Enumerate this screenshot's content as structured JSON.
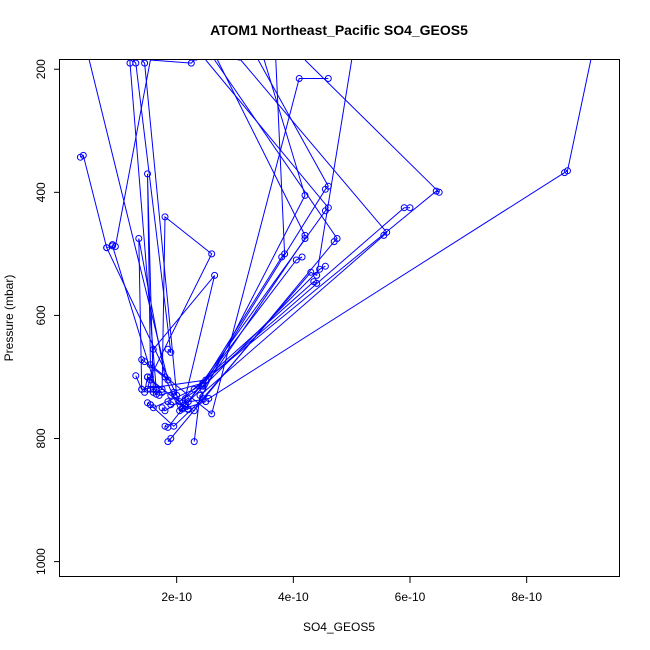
{
  "chart_data": {
    "type": "line",
    "title": "ATOM1 Northeast_Pacific SO4_GEOS5",
    "xlabel": "SO4_GEOS5",
    "ylabel": "Pressure (mbar)",
    "xlim": [
      0,
      9.6e-10
    ],
    "ylim": [
      1025,
      185
    ],
    "y_reversed": true,
    "grid": false,
    "line_color": "#0000ff",
    "marker": "open-circle",
    "x_ticks": [
      {
        "value": 2e-10,
        "label": "2e-10"
      },
      {
        "value": 4e-10,
        "label": "4e-10"
      },
      {
        "value": 6e-10,
        "label": "6e-10"
      },
      {
        "value": 8e-10,
        "label": "8e-10"
      }
    ],
    "y_ticks": [
      {
        "value": 200,
        "label": "200"
      },
      {
        "value": 400,
        "label": "400"
      },
      {
        "value": 600,
        "label": "600"
      },
      {
        "value": 800,
        "label": "800"
      },
      {
        "value": 1000,
        "label": "1000"
      }
    ],
    "series": [
      {
        "x": [
          3.5e-11,
          4e-11,
          8e-11,
          2.1e-10,
          2.2e-10
        ],
        "y": [
          343,
          340,
          490,
          750,
          753
        ]
      },
      {
        "x": [
          8e-11,
          9e-11,
          1.65e-10,
          1.75e-10
        ],
        "y": [
          490,
          487,
          720,
          725
        ]
      },
      {
        "x": [
          1.6e-10,
          1.5e-10,
          1.55e-10,
          2.6e-10,
          4.1e-10,
          4.6e-10
        ],
        "y": [
          720,
          370,
          680,
          760,
          215,
          215
        ]
      },
      {
        "x": [
          1.4e-10,
          1.35e-10,
          1.8e-10,
          2.05e-10,
          4.45e-10,
          4.55e-10
        ],
        "y": [
          720,
          475,
          700,
          755,
          525,
          520
        ]
      },
      {
        "x": [
          1.75e-10,
          1.8e-10,
          2.6e-10,
          1.55e-10,
          1.5e-10
        ],
        "y": [
          720,
          440,
          500,
          700,
          720
        ]
      },
      {
        "x": [
          1.55e-10,
          1.6e-10,
          2.65e-10,
          2.1e-10,
          2.5e-10
        ],
        "y": [
          720,
          655,
          535,
          752,
          740
        ]
      },
      {
        "x": [
          1.5e-10,
          1.55e-10,
          1.95e-10,
          2.45e-10,
          4.3e-10,
          4.4e-10,
          5e-10
        ],
        "y": [
          742,
          745,
          780,
          735,
          530,
          535,
          185
        ]
      },
      {
        "x": [
          1.8e-10,
          1.85e-10,
          2.45e-10,
          4.05e-10,
          4.15e-10
        ],
        "y": [
          780,
          782,
          710,
          510,
          505
        ]
      },
      {
        "x": [
          1.3e-10,
          1.4e-10,
          2.5e-10,
          5.9e-10,
          6e-10
        ],
        "y": [
          698,
          720,
          705,
          425,
          425
        ]
      },
      {
        "x": [
          2.3e-10,
          2.4e-10,
          5.55e-10,
          5.6e-10,
          3.1e-10,
          3.05e-10
        ],
        "y": [
          805,
          730,
          470,
          465,
          185,
          185
        ]
      },
      {
        "x": [
          1.85e-10,
          1.9e-10,
          4.7e-10,
          4.75e-10,
          2.65e-10
        ],
        "y": [
          805,
          800,
          480,
          475,
          185
        ]
      },
      {
        "x": [
          2.15e-10,
          2.2e-10,
          2.2e-10,
          4.55e-10,
          4.6e-10,
          2.5e-10
        ],
        "y": [
          735,
          752,
          740,
          430,
          425,
          185
        ]
      },
      {
        "x": [
          2.45e-10,
          4.2e-10,
          4.2e-10,
          2.7e-10
        ],
        "y": [
          720,
          475,
          470,
          185
        ]
      },
      {
        "x": [
          1.45e-10,
          1.5e-10,
          1.9e-10,
          2.05e-10,
          4.35e-10,
          4.4e-10
        ],
        "y": [
          725,
          700,
          730,
          740,
          545,
          548
        ]
      },
      {
        "x": [
          1.75e-10,
          1.8e-10,
          2.45e-10,
          4.55e-10,
          4.6e-10,
          3.4e-10
        ],
        "y": [
          750,
          755,
          715,
          395,
          390,
          185
        ]
      },
      {
        "x": [
          1.65e-10,
          1.7e-10,
          2.45e-10,
          3.8e-10,
          3.85e-10,
          3.7e-10
        ],
        "y": [
          728,
          730,
          710,
          505,
          500,
          185
        ]
      },
      {
        "x": [
          1.85e-10,
          1.9e-10,
          2.55e-10,
          8.65e-10,
          8.7e-10,
          9.1e-10
        ],
        "y": [
          740,
          745,
          735,
          368,
          365,
          185
        ]
      },
      {
        "x": [
          1.55e-10,
          1.6e-10,
          2.3e-10,
          6.45e-10,
          6.5e-10,
          4.2e-10
        ],
        "y": [
          745,
          750,
          720,
          398,
          400,
          185
        ]
      },
      {
        "x": [
          1.4e-10,
          1.45e-10,
          1.85e-10,
          5e-11
        ],
        "y": [
          672,
          675,
          705,
          185
        ]
      },
      {
        "x": [
          1.5e-10,
          1.55e-10,
          2.15e-10,
          2.3e-10,
          4.2e-10,
          3.5e-10
        ],
        "y": [
          700,
          705,
          748,
          755,
          405,
          185
        ]
      },
      {
        "x": [
          1.85e-10,
          1.9e-10,
          1.3e-10,
          1.25e-10
        ],
        "y": [
          655,
          660,
          190,
          185
        ]
      },
      {
        "x": [
          1.95e-10,
          2e-10,
          1.45e-10,
          1.4e-10
        ],
        "y": [
          725,
          730,
          190,
          185
        ]
      },
      {
        "x": [
          1.6e-10,
          1.65e-10,
          1.2e-10,
          1.2e-10
        ],
        "y": [
          725,
          722,
          190,
          185
        ]
      },
      {
        "x": [
          9e-11,
          9.5e-11,
          1.55e-10,
          2.25e-10,
          2.3e-10,
          2.35e-10
        ],
        "y": [
          485,
          488,
          185,
          190,
          185,
          185
        ]
      }
    ]
  }
}
